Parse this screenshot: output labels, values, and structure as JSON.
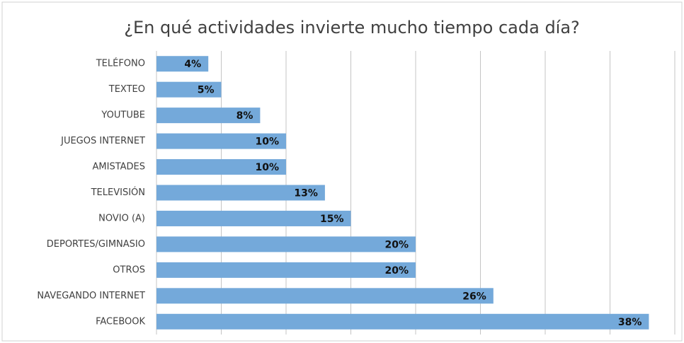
{
  "chart_data": {
    "type": "barh",
    "title": "¿En qué actividades invierte mucho tiempo cada día?",
    "categories": [
      "TELÉFONO",
      "TEXTEO",
      "YOUTUBE",
      "JUEGOS INTERNET",
      "AMISTADES",
      "TELEVISIÓN",
      "NOVIO (A)",
      "DEPORTES/GIMNASIO",
      "OTROS",
      "NAVEGANDO INTERNET",
      "FACEBOOK"
    ],
    "values": [
      4,
      5,
      8,
      10,
      10,
      13,
      15,
      20,
      20,
      26,
      38
    ],
    "value_labels": [
      "4%",
      "5%",
      "8%",
      "10%",
      "10%",
      "13%",
      "15%",
      "20%",
      "20%",
      "26%",
      "38%"
    ],
    "color": "#74a9da",
    "xlim": [
      0,
      40
    ],
    "xticks": [
      0,
      5,
      10,
      15,
      20,
      25,
      30,
      35,
      40
    ],
    "grid": true
  }
}
